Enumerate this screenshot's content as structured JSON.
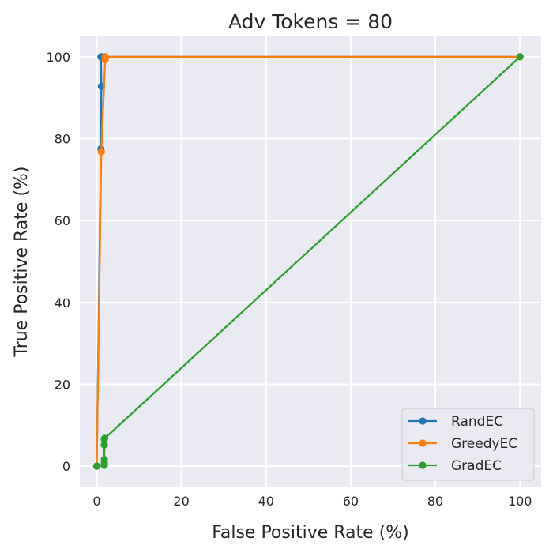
{
  "chart_data": {
    "type": "line",
    "title": "Adv Tokens = 80",
    "xlabel": "False Positive Rate (%)",
    "ylabel": "True Positive Rate (%)",
    "xlim": [
      -4,
      105
    ],
    "ylim": [
      -5,
      105
    ],
    "xticks": [
      0,
      20,
      40,
      60,
      80,
      100
    ],
    "yticks": [
      0,
      20,
      40,
      60,
      80,
      100
    ],
    "grid": true,
    "legend_position": "lower-right",
    "series": [
      {
        "name": "RandEC",
        "color": "#1f77b4",
        "x": [
          0,
          1.0,
          1.1,
          1.0,
          1.2,
          1.8,
          2.0,
          100
        ],
        "y": [
          0,
          77.5,
          92.8,
          100,
          100,
          100,
          100,
          100
        ]
      },
      {
        "name": "GreedyEC",
        "color": "#ff7f0e",
        "x": [
          0,
          1.1,
          2.0,
          2.0,
          2.0,
          100
        ],
        "y": [
          0,
          76.8,
          99.3,
          99.8,
          100,
          100
        ]
      },
      {
        "name": "GradEC",
        "color": "#2ca02c",
        "x": [
          0,
          1.8,
          1.8,
          1.8,
          1.8,
          1.8,
          1.9,
          100
        ],
        "y": [
          0,
          0.2,
          0.8,
          1.6,
          5.2,
          6.6,
          6.8,
          100
        ]
      }
    ]
  }
}
